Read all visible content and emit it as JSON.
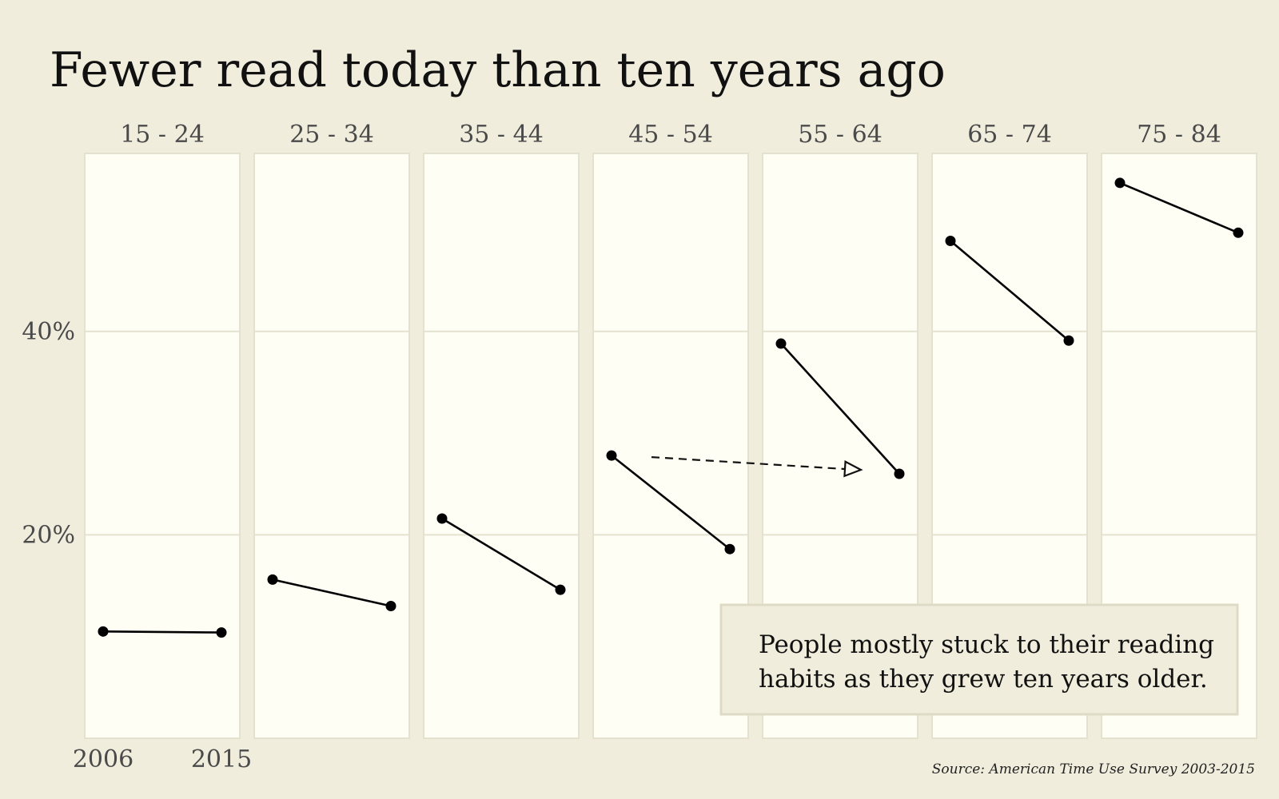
{
  "chart_data": {
    "type": "line",
    "title": "Fewer read today than ten years ago",
    "x": [
      "2006",
      "2015"
    ],
    "facets": [
      {
        "name": "15 - 24",
        "values": [
          10.5,
          10.4
        ]
      },
      {
        "name": "25 - 34",
        "values": [
          15.6,
          13.0
        ]
      },
      {
        "name": "35 - 44",
        "values": [
          21.6,
          14.6
        ]
      },
      {
        "name": "45 - 54",
        "values": [
          27.8,
          18.6
        ]
      },
      {
        "name": "55 - 64",
        "values": [
          38.8,
          26.0
        ]
      },
      {
        "name": "65 - 74",
        "values": [
          48.9,
          39.1
        ]
      },
      {
        "name": "75 - 84",
        "values": [
          54.6,
          49.7
        ]
      }
    ],
    "y_ticks": [
      {
        "value": 20,
        "label": "20%"
      },
      {
        "value": 40,
        "label": "40%"
      }
    ],
    "ylim": [
      0,
      57.5
    ],
    "grid": true,
    "annotation": {
      "arrow_from_facet": "45 - 54",
      "arrow_to_facet": "55 - 64",
      "arrow_from_value": 27.8,
      "arrow_to_value": 26.0,
      "text_lines": [
        "People mostly stuck to their reading",
        "habits as they grew ten years older."
      ]
    },
    "source": "Source: American Time Use Survey 2003-2015"
  },
  "colors": {
    "background": "#f1eddd",
    "panel": "#fefef4",
    "panel_border": "#e4e1cf",
    "grid": "#e4e1cf",
    "line": "#000000",
    "note_box": "#f0eddc",
    "note_border": "#dedac6"
  }
}
